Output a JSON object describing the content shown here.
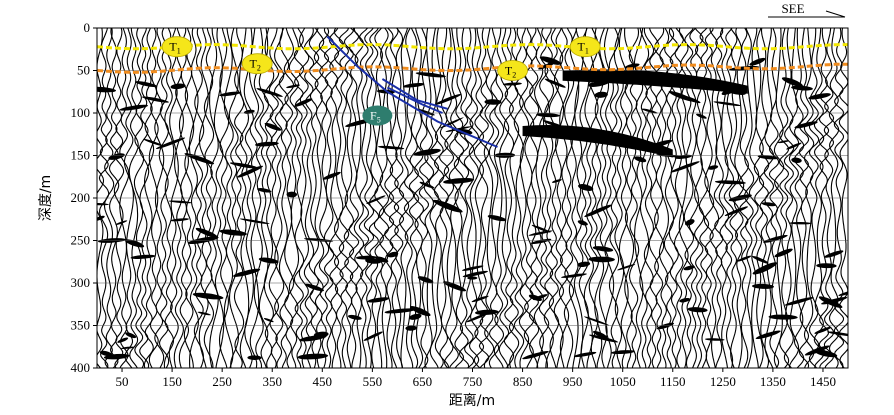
{
  "figure": {
    "direction_label": "SEE",
    "x_axis_title": "距离/m",
    "y_axis_title": "深度/m",
    "x_ticks": [
      "50",
      "150",
      "250",
      "350",
      "450",
      "550",
      "650",
      "750",
      "850",
      "950",
      "1050",
      "1150",
      "1250",
      "1350",
      "1450"
    ],
    "y_ticks": [
      "0",
      "50",
      "100",
      "150",
      "200",
      "250",
      "300",
      "350",
      "400"
    ],
    "x_range": [
      0,
      1500
    ],
    "y_range": [
      0,
      400
    ],
    "horizons": [
      {
        "id": "T1",
        "main": "T",
        "sub": "1",
        "color": "#f2e600",
        "depth_left": 22,
        "depth_right": 22
      },
      {
        "id": "T2",
        "main": "T",
        "sub": "2",
        "color": "#f08c1e",
        "depth_left": 50,
        "depth_right": 45
      }
    ],
    "horizon_labels": [
      {
        "horizon": "T1",
        "x": 160,
        "depth": 22
      },
      {
        "horizon": "T2",
        "x": 320,
        "depth": 42
      },
      {
        "horizon": "T2",
        "x": 830,
        "depth": 50
      },
      {
        "horizon": "T1",
        "x": 975,
        "depth": 22
      }
    ],
    "fault_label": {
      "main": "F",
      "sub": "5",
      "x": 560,
      "depth": 103,
      "color": "#2e7d6e"
    },
    "fault_color": "#1a2fa8",
    "faults": [
      [
        [
          460,
          10
        ],
        [
          520,
          45
        ],
        [
          580,
          75
        ],
        [
          680,
          110
        ],
        [
          800,
          140
        ]
      ],
      [
        [
          570,
          60
        ],
        [
          640,
          85
        ],
        [
          700,
          95
        ]
      ],
      [
        [
          580,
          70
        ],
        [
          650,
          90
        ],
        [
          690,
          100
        ]
      ]
    ],
    "bands": [
      {
        "x1": 930,
        "y1": 55,
        "x2": 1300,
        "y2": 75
      },
      {
        "x1": 850,
        "y1": 120,
        "x2": 1150,
        "y2": 150
      }
    ]
  }
}
